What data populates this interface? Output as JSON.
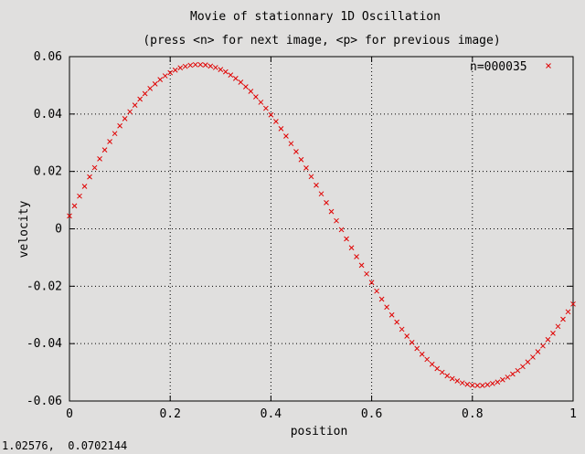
{
  "window": {
    "status_readout": "1.02576,  0.0702144"
  },
  "chart_data": {
    "type": "scatter",
    "title": "Movie of stationnary 1D Oscillation",
    "subtitle": "(press <n> for next image, <p> for previous image)",
    "xlabel": "position",
    "ylabel": "velocity",
    "xlim": [
      0,
      1
    ],
    "ylim": [
      -0.06,
      0.06
    ],
    "x_ticks": [
      0,
      0.2,
      0.4,
      0.6,
      0.8,
      1
    ],
    "x_tick_labels": [
      "0",
      "0.2",
      "0.4",
      "0.6",
      "0.8",
      "1"
    ],
    "y_ticks": [
      -0.06,
      -0.04,
      -0.02,
      0,
      0.02,
      0.04,
      0.06
    ],
    "y_tick_labels": [
      "-0.06",
      "-0.04",
      "-0.02",
      "0",
      "0.02",
      "0.04",
      "0.06"
    ],
    "grid": true,
    "legend_position": "top-right",
    "series": [
      {
        "name": "n=000035",
        "marker": "x",
        "color": "#e00000",
        "x": [
          0,
          0.01,
          0.02,
          0.03,
          0.04,
          0.05,
          0.06,
          0.07,
          0.08,
          0.09,
          0.1,
          0.11,
          0.12,
          0.13,
          0.14,
          0.15,
          0.16,
          0.17,
          0.18,
          0.19,
          0.2,
          0.21,
          0.22,
          0.23,
          0.24,
          0.25,
          0.26,
          0.27,
          0.28,
          0.29,
          0.3,
          0.31,
          0.32,
          0.33,
          0.34,
          0.35,
          0.36,
          0.37,
          0.38,
          0.39,
          0.4,
          0.41,
          0.42,
          0.43,
          0.44,
          0.45,
          0.46,
          0.47,
          0.48,
          0.49,
          0.5,
          0.51,
          0.52,
          0.53,
          0.54,
          0.55,
          0.56,
          0.57,
          0.58,
          0.59,
          0.6,
          0.61,
          0.62,
          0.63,
          0.64,
          0.65,
          0.66,
          0.67,
          0.68,
          0.69,
          0.7,
          0.71,
          0.72,
          0.73,
          0.74,
          0.75,
          0.76,
          0.77,
          0.78,
          0.79,
          0.8,
          0.81,
          0.82,
          0.83,
          0.84,
          0.85,
          0.86,
          0.87,
          0.88,
          0.89,
          0.9,
          0.91,
          0.92,
          0.93,
          0.94,
          0.95,
          0.96,
          0.97,
          0.98,
          0.99,
          1
        ],
        "y": [
          0.0045,
          0.008,
          0.0114,
          0.0148,
          0.0181,
          0.0213,
          0.0244,
          0.0275,
          0.0304,
          0.0332,
          0.0359,
          0.0384,
          0.0408,
          0.0431,
          0.0452,
          0.0471,
          0.0489,
          0.0505,
          0.052,
          0.0533,
          0.0544,
          0.0553,
          0.0561,
          0.0566,
          0.057,
          0.0572,
          0.0572,
          0.0571,
          0.0567,
          0.0562,
          0.0555,
          0.0547,
          0.0536,
          0.0524,
          0.0511,
          0.0495,
          0.0479,
          0.046,
          0.0441,
          0.042,
          0.0397,
          0.0374,
          0.0349,
          0.0323,
          0.0297,
          0.0269,
          0.0241,
          0.0212,
          0.0182,
          0.0152,
          0.0122,
          0.0091,
          0.006,
          0.0028,
          -0.0003,
          -0.0035,
          -0.0066,
          -0.0097,
          -0.0127,
          -0.0157,
          -0.0187,
          -0.0217,
          -0.0245,
          -0.0273,
          -0.03,
          -0.0325,
          -0.035,
          -0.0374,
          -0.0396,
          -0.0417,
          -0.0437,
          -0.0455,
          -0.0472,
          -0.0487,
          -0.05,
          -0.0512,
          -0.0522,
          -0.053,
          -0.0537,
          -0.0542,
          -0.0545,
          -0.0546,
          -0.0546,
          -0.0543,
          -0.0539,
          -0.0534,
          -0.0526,
          -0.0517,
          -0.0506,
          -0.0494,
          -0.048,
          -0.0464,
          -0.0447,
          -0.0428,
          -0.0408,
          -0.0386,
          -0.0364,
          -0.034,
          -0.0315,
          -0.0289,
          -0.0262
        ]
      }
    ]
  }
}
